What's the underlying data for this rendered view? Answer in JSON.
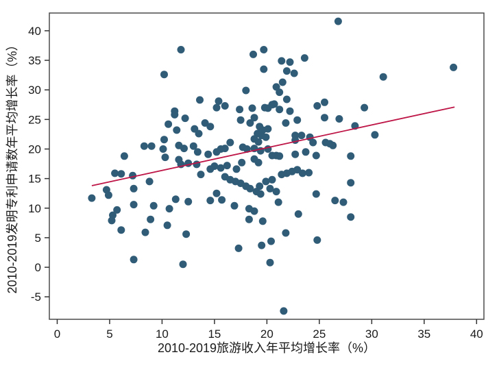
{
  "chart_data": {
    "type": "scatter",
    "title": "",
    "xlabel": "2010-2019旅游收入年平均增长率（%）",
    "ylabel": "2010-2019发明专利申请数年平均增长率（%）",
    "xlim": [
      -0.75,
      40.7
    ],
    "ylim": [
      -8.8,
      43.0
    ],
    "x_ticks": [
      0,
      5,
      10,
      15,
      20,
      25,
      30,
      35,
      40
    ],
    "y_ticks": [
      -5,
      0,
      5,
      10,
      15,
      20,
      25,
      30,
      35,
      40
    ],
    "grid": false,
    "legend": false,
    "colors": {
      "point": "#315C77",
      "fit_line": "#BE1547",
      "frame": "#4a4a4a",
      "tick": "#333333",
      "text": "#1a1a1a",
      "background": "#ffffff"
    },
    "series": [
      {
        "name": "observations",
        "kind": "scatter",
        "color": "#315C77",
        "points": [
          [
            11.8,
            36.8
          ],
          [
            10.2,
            32.6
          ],
          [
            13.6,
            28.3
          ],
          [
            11.2,
            26.4
          ],
          [
            26.8,
            41.6
          ],
          [
            18.7,
            36.0
          ],
          [
            19.7,
            36.8
          ],
          [
            21.4,
            34.9
          ],
          [
            22.2,
            34.7
          ],
          [
            23.6,
            35.4
          ],
          [
            19.7,
            33.5
          ],
          [
            21.9,
            33.2
          ],
          [
            22.6,
            32.8
          ],
          [
            21.5,
            31.3
          ],
          [
            20.9,
            30.5
          ],
          [
            21.2,
            29.6
          ],
          [
            18.0,
            29.9
          ],
          [
            21.9,
            28.4
          ],
          [
            20.7,
            27.6
          ],
          [
            15.4,
            28.1
          ],
          [
            15.2,
            27.0
          ],
          [
            16.0,
            27.3
          ],
          [
            17.4,
            26.7
          ],
          [
            18.6,
            26.9
          ],
          [
            19.8,
            27.0
          ],
          [
            20.1,
            26.9
          ],
          [
            20.5,
            27.5
          ],
          [
            21.2,
            26.7
          ],
          [
            22.2,
            26.4
          ],
          [
            24.8,
            27.3
          ],
          [
            25.5,
            27.9
          ],
          [
            37.8,
            33.8
          ],
          [
            31.1,
            32.2
          ],
          [
            29.3,
            27.0
          ],
          [
            11.2,
            25.8
          ],
          [
            12.2,
            25.2
          ],
          [
            10.6,
            24.2
          ],
          [
            13.1,
            23.4
          ],
          [
            13.5,
            22.6
          ],
          [
            11.4,
            23.2
          ],
          [
            10.2,
            21.6
          ],
          [
            8.3,
            20.5
          ],
          [
            9.0,
            20.5
          ],
          [
            10.1,
            20.0
          ],
          [
            11.6,
            20.6
          ],
          [
            12.1,
            20.1
          ],
          [
            13.0,
            20.5
          ],
          [
            13.4,
            19.5
          ],
          [
            6.4,
            18.8
          ],
          [
            10.3,
            18.6
          ],
          [
            11.6,
            18.2
          ],
          [
            11.8,
            17.4
          ],
          [
            12.5,
            17.6
          ],
          [
            13.3,
            17.4
          ],
          [
            5.5,
            15.9
          ],
          [
            6.1,
            15.8
          ],
          [
            7.2,
            15.5
          ],
          [
            7.3,
            13.3
          ],
          [
            4.7,
            13.1
          ],
          [
            4.9,
            12.2
          ],
          [
            3.3,
            11.7
          ],
          [
            8.8,
            14.5
          ],
          [
            7.3,
            10.6
          ],
          [
            9.2,
            10.4
          ],
          [
            5.7,
            9.7
          ],
          [
            5.3,
            8.8
          ],
          [
            8.9,
            8.1
          ],
          [
            10.7,
            9.9
          ],
          [
            11.3,
            11.5
          ],
          [
            12.5,
            11.1
          ],
          [
            17.5,
            24.9
          ],
          [
            18.4,
            24.4
          ],
          [
            18.8,
            25.3
          ],
          [
            21.8,
            24.4
          ],
          [
            22.9,
            24.9
          ],
          [
            25.5,
            25.3
          ],
          [
            14.1,
            24.4
          ],
          [
            14.6,
            23.8
          ],
          [
            19.3,
            23.8
          ],
          [
            19.6,
            23.2
          ],
          [
            20.1,
            23.4
          ],
          [
            19.1,
            22.6
          ],
          [
            19.5,
            22.3
          ],
          [
            19.9,
            22.0
          ],
          [
            18.8,
            21.7
          ],
          [
            19.2,
            21.2
          ],
          [
            22.7,
            22.3
          ],
          [
            23.3,
            22.3
          ],
          [
            24.1,
            22.0
          ],
          [
            22.7,
            21.5
          ],
          [
            24.4,
            21.1
          ],
          [
            16.5,
            21.1
          ],
          [
            16.0,
            20.1
          ],
          [
            15.2,
            19.5
          ],
          [
            15.6,
            20.0
          ],
          [
            14.4,
            19.1
          ],
          [
            17.7,
            20.3
          ],
          [
            18.1,
            20.0
          ],
          [
            18.8,
            20.1
          ],
          [
            19.4,
            19.7
          ],
          [
            20.1,
            20.0
          ],
          [
            20.5,
            18.9
          ],
          [
            20.9,
            18.9
          ],
          [
            21.2,
            18.8
          ],
          [
            18.8,
            18.3
          ],
          [
            19.2,
            17.7
          ],
          [
            17.6,
            17.7
          ],
          [
            17.1,
            16.6
          ],
          [
            16.2,
            17.2
          ],
          [
            15.6,
            16.8
          ],
          [
            15.0,
            17.1
          ],
          [
            22.7,
            19.1
          ],
          [
            23.7,
            19.5
          ],
          [
            24.7,
            18.9
          ],
          [
            25.6,
            21.1
          ],
          [
            26.0,
            20.9
          ],
          [
            26.3,
            20.6
          ],
          [
            14.6,
            16.6
          ],
          [
            13.7,
            15.7
          ],
          [
            16.0,
            15.3
          ],
          [
            16.5,
            14.8
          ],
          [
            17.0,
            14.5
          ],
          [
            17.5,
            14.2
          ],
          [
            18.0,
            13.7
          ],
          [
            18.4,
            13.3
          ],
          [
            19.0,
            12.8
          ],
          [
            19.4,
            12.4
          ],
          [
            19.9,
            14.5
          ],
          [
            20.5,
            14.8
          ],
          [
            21.4,
            15.7
          ],
          [
            21.9,
            15.9
          ],
          [
            22.4,
            16.2
          ],
          [
            22.9,
            16.5
          ],
          [
            23.4,
            15.9
          ],
          [
            24.0,
            16.0
          ],
          [
            15.2,
            12.5
          ],
          [
            14.6,
            11.3
          ],
          [
            15.7,
            11.4
          ],
          [
            16.9,
            10.4
          ],
          [
            18.3,
            9.9
          ],
          [
            18.8,
            9.5
          ],
          [
            19.3,
            13.7
          ],
          [
            20.3,
            13.3
          ],
          [
            20.9,
            12.8
          ],
          [
            21.1,
            11.0
          ],
          [
            23.0,
            9.0
          ],
          [
            24.7,
            12.4
          ],
          [
            26.5,
            11.3
          ],
          [
            27.3,
            11.0
          ],
          [
            26.9,
            25.1
          ],
          [
            28.4,
            23.9
          ],
          [
            30.3,
            22.4
          ],
          [
            28.0,
            18.8
          ],
          [
            28.0,
            14.3
          ],
          [
            28.0,
            8.5
          ],
          [
            5.2,
            7.9
          ],
          [
            10.5,
            7.1
          ],
          [
            6.1,
            6.3
          ],
          [
            8.4,
            5.9
          ],
          [
            12.3,
            5.6
          ],
          [
            7.3,
            1.3
          ],
          [
            12.0,
            0.5
          ],
          [
            18.3,
            8.1
          ],
          [
            19.6,
            7.8
          ],
          [
            21.8,
            5.8
          ],
          [
            24.8,
            4.6
          ],
          [
            20.4,
            4.4
          ],
          [
            19.5,
            3.7
          ],
          [
            17.3,
            3.2
          ],
          [
            20.3,
            0.8
          ],
          [
            21.6,
            -7.4
          ]
        ]
      },
      {
        "name": "fit-line",
        "kind": "line",
        "color": "#BE1547",
        "points": [
          [
            3.3,
            13.8
          ],
          [
            37.9,
            27.1
          ]
        ]
      }
    ]
  }
}
